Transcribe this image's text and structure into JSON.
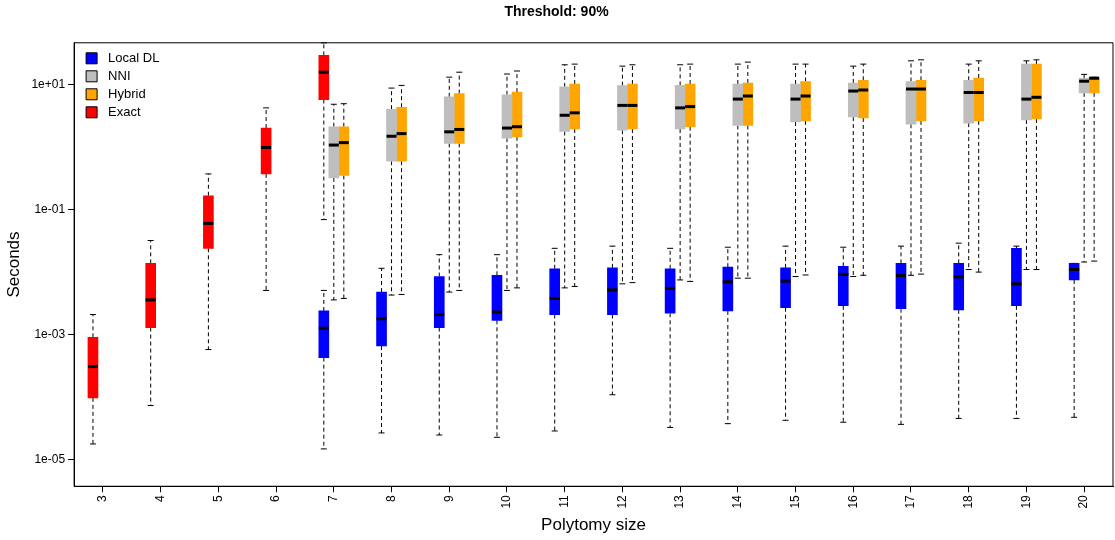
{
  "chart_data": {
    "type": "box",
    "title": "Threshold: 90%",
    "xlabel": "Polytomy size",
    "ylabel": "Seconds",
    "log": "y",
    "legend": "top left",
    "grid": false,
    "categories": [
      "3",
      "4",
      "5",
      "6",
      "7",
      "8",
      "9",
      "10",
      "11",
      "12",
      "13",
      "14",
      "15",
      "16",
      "17",
      "18",
      "19",
      "20"
    ],
    "ylim": [
      3.8e-06,
      46
    ],
    "yticks": [
      {
        "value": 1e-05,
        "label": "1e-05"
      },
      {
        "value": 0.001,
        "label": "1e-03"
      },
      {
        "value": 0.1,
        "label": "1e-01"
      },
      {
        "value": 10,
        "label": "1e+01"
      }
    ],
    "series": [
      {
        "name": "Local DL",
        "color": "#0000ff",
        "boxes": [
          null,
          null,
          null,
          null,
          {
            "low": 1.5e-05,
            "q1": 0.00043,
            "median": 0.00127,
            "q3": 0.0024,
            "high": 0.0051
          },
          {
            "low": 2.7e-05,
            "q1": 0.00066,
            "median": 0.0018,
            "q3": 0.0048,
            "high": 0.0115
          },
          {
            "low": 2.5e-05,
            "q1": 0.0013,
            "median": 0.0021,
            "q3": 0.0085,
            "high": 0.019
          },
          {
            "low": 2.3e-05,
            "q1": 0.0017,
            "median": 0.0023,
            "q3": 0.0089,
            "high": 0.019
          },
          {
            "low": 2.9e-05,
            "q1": 0.0021,
            "median": 0.0038,
            "q3": 0.0113,
            "high": 0.024
          },
          {
            "low": 0.00011,
            "q1": 0.0021,
            "median": 0.0052,
            "q3": 0.0117,
            "high": 0.026
          },
          {
            "low": 3.3e-05,
            "q1": 0.0022,
            "median": 0.0055,
            "q3": 0.0113,
            "high": 0.024
          },
          {
            "low": 3.8e-05,
            "q1": 0.0024,
            "median": 0.007,
            "q3": 0.012,
            "high": 0.025
          },
          {
            "low": 4.3e-05,
            "q1": 0.0027,
            "median": 0.0072,
            "q3": 0.0117,
            "high": 0.026
          },
          {
            "low": 4e-05,
            "q1": 0.0029,
            "median": 0.0092,
            "q3": 0.0124,
            "high": 0.025
          },
          {
            "low": 3.7e-05,
            "q1": 0.0026,
            "median": 0.0088,
            "q3": 0.0138,
            "high": 0.026
          },
          {
            "low": 4.6e-05,
            "q1": 0.0025,
            "median": 0.0084,
            "q3": 0.0138,
            "high": 0.029
          },
          {
            "low": 4.6e-05,
            "q1": 0.0029,
            "median": 0.0065,
            "q3": 0.024,
            "high": 0.026
          },
          {
            "low": 4.8e-05,
            "q1": 0.0075,
            "median": 0.011,
            "q3": 0.0138,
            "high": 0.0138
          }
        ]
      },
      {
        "name": "NNI",
        "color": "#bebebe",
        "boxes": [
          null,
          null,
          null,
          null,
          {
            "low": 0.0036,
            "q1": 0.32,
            "median": 1.07,
            "q3": 2.1,
            "high": 4.8
          },
          {
            "low": 0.0043,
            "q1": 0.59,
            "median": 1.48,
            "q3": 4.0,
            "high": 8.7
          },
          {
            "low": 0.0048,
            "q1": 1.14,
            "median": 1.74,
            "q3": 6.3,
            "high": 13
          },
          {
            "low": 0.0051,
            "q1": 1.38,
            "median": 2.0,
            "q3": 6.8,
            "high": 14.6
          },
          {
            "low": 0.0056,
            "q1": 1.76,
            "median": 3.2,
            "q3": 9.1,
            "high": 20.5
          },
          {
            "low": 0.0065,
            "q1": 1.85,
            "median": 4.6,
            "q3": 9.5,
            "high": 19.5
          },
          {
            "low": 0.0075,
            "q1": 1.93,
            "median": 4.2,
            "q3": 9.6,
            "high": 20.5
          },
          {
            "low": 0.008,
            "q1": 2.2,
            "median": 5.8,
            "q3": 10.1,
            "high": 21
          },
          {
            "low": 0.0085,
            "q1": 2.5,
            "median": 5.8,
            "q3": 10.1,
            "high": 21
          },
          {
            "low": 0.0085,
            "q1": 3.0,
            "median": 7.8,
            "q3": 10.5,
            "high": 19.5
          },
          {
            "low": 0.0089,
            "q1": 2.3,
            "median": 8.4,
            "q3": 11.1,
            "high": 23.7
          },
          {
            "low": 0.011,
            "q1": 2.4,
            "median": 7.4,
            "q3": 11.6,
            "high": 21
          },
          {
            "low": 0.011,
            "q1": 2.7,
            "median": 5.8,
            "q3": 21,
            "high": 23.7
          },
          {
            "low": 0.0145,
            "q1": 7.3,
            "median": 11.2,
            "q3": 12.5,
            "high": 14.4
          }
        ]
      },
      {
        "name": "Hybrid",
        "color": "#ffa500",
        "boxes": [
          null,
          null,
          null,
          null,
          {
            "low": 0.0038,
            "q1": 0.35,
            "median": 1.17,
            "q3": 2.1,
            "high": 4.9
          },
          {
            "low": 0.0044,
            "q1": 0.59,
            "median": 1.63,
            "q3": 4.3,
            "high": 9.6
          },
          {
            "low": 0.0051,
            "q1": 1.14,
            "median": 1.9,
            "q3": 7.1,
            "high": 15.6
          },
          {
            "low": 0.0056,
            "q1": 1.45,
            "median": 2.1,
            "q3": 7.5,
            "high": 16.3
          },
          {
            "low": 0.0059,
            "q1": 1.93,
            "median": 3.5,
            "q3": 10.1,
            "high": 21
          },
          {
            "low": 0.0068,
            "q1": 1.93,
            "median": 4.6,
            "q3": 10.1,
            "high": 20.5
          },
          {
            "low": 0.0071,
            "q1": 2.1,
            "median": 4.4,
            "q3": 10.1,
            "high": 21
          },
          {
            "low": 0.008,
            "q1": 2.2,
            "median": 6.5,
            "q3": 10.5,
            "high": 22.6
          },
          {
            "low": 0.009,
            "q1": 2.6,
            "median": 6.5,
            "q3": 11.1,
            "high": 21
          },
          {
            "low": 0.0089,
            "q1": 2.9,
            "median": 8.1,
            "q3": 11.6,
            "high": 21
          },
          {
            "low": 0.0093,
            "q1": 2.6,
            "median": 8.4,
            "q3": 11.6,
            "high": 24.6
          },
          {
            "low": 0.01,
            "q1": 2.6,
            "median": 7.4,
            "q3": 12.6,
            "high": 23.7
          },
          {
            "low": 0.011,
            "q1": 2.8,
            "median": 6.2,
            "q3": 21,
            "high": 24.6
          },
          {
            "low": 0.015,
            "q1": 7.3,
            "median": 12.5,
            "q3": 12.8,
            "high": 13
          }
        ]
      },
      {
        "name": "Exact",
        "color": "#ff0000",
        "boxes": [
          {
            "low": 1.8e-05,
            "q1": 9.8e-05,
            "median": 0.00031,
            "q3": 0.00091,
            "high": 0.0021
          },
          {
            "low": 7.4e-05,
            "q1": 0.0013,
            "median": 0.0036,
            "q3": 0.0138,
            "high": 0.032
          },
          {
            "low": 0.00058,
            "q1": 0.024,
            "median": 0.06,
            "q3": 0.166,
            "high": 0.37
          },
          {
            "low": 0.0051,
            "q1": 0.37,
            "median": 0.98,
            "q3": 2.0,
            "high": 4.2
          },
          {
            "low": 0.069,
            "q1": 5.7,
            "median": 15.6,
            "q3": 29,
            "high": 46
          },
          null,
          null,
          null,
          null,
          null,
          null,
          null,
          null,
          null,
          null,
          null,
          null,
          null
        ]
      }
    ]
  }
}
